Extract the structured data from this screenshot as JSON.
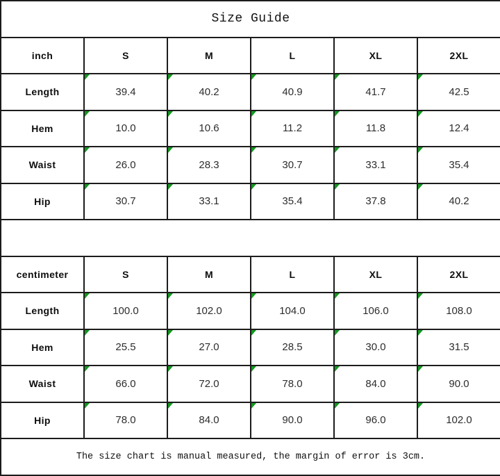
{
  "title": "Size Guide",
  "footer_note": "The size chart is manual measured, the margin of error is 3cm.",
  "colors": {
    "flag_green": "#12991f",
    "border": "#1c1c1c"
  },
  "tables": [
    {
      "unit": "inch",
      "sizes": [
        "S",
        "M",
        "L",
        "XL",
        "2XL"
      ],
      "rows": [
        {
          "label": "Length",
          "values": [
            "39.4",
            "40.2",
            "40.9",
            "41.7",
            "42.5"
          ]
        },
        {
          "label": "Hem",
          "values": [
            "10.0",
            "10.6",
            "11.2",
            "11.8",
            "12.4"
          ]
        },
        {
          "label": "Waist",
          "values": [
            "26.0",
            "28.3",
            "30.7",
            "33.1",
            "35.4"
          ]
        },
        {
          "label": "Hip",
          "values": [
            "30.7",
            "33.1",
            "35.4",
            "37.8",
            "40.2"
          ]
        }
      ]
    },
    {
      "unit": "centimeter",
      "sizes": [
        "S",
        "M",
        "L",
        "XL",
        "2XL"
      ],
      "rows": [
        {
          "label": "Length",
          "values": [
            "100.0",
            "102.0",
            "104.0",
            "106.0",
            "108.0"
          ]
        },
        {
          "label": "Hem",
          "values": [
            "25.5",
            "27.0",
            "28.5",
            "30.0",
            "31.5"
          ]
        },
        {
          "label": "Waist",
          "values": [
            "66.0",
            "72.0",
            "78.0",
            "84.0",
            "90.0"
          ]
        },
        {
          "label": "Hip",
          "values": [
            "78.0",
            "84.0",
            "90.0",
            "96.0",
            "102.0"
          ]
        }
      ]
    }
  ]
}
